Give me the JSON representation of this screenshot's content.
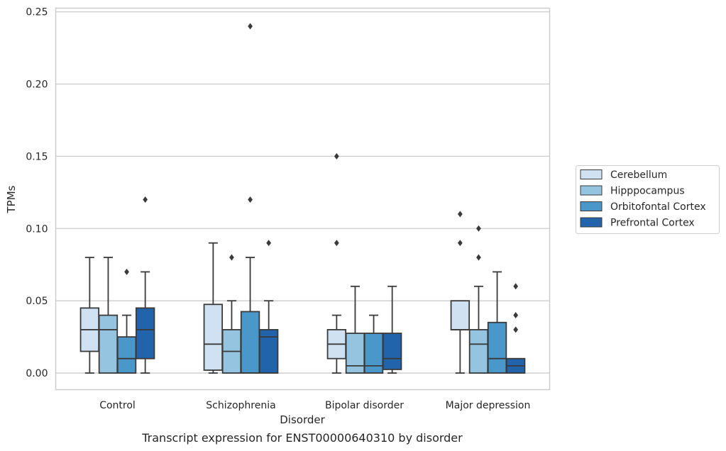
{
  "chart_data": {
    "type": "box",
    "title": "",
    "caption": "Transcript expression for ENST00000640310 by disorder",
    "xlabel": "Disorder",
    "ylabel": "TPMs",
    "ylim": [
      -0.0115,
      0.2525
    ],
    "yticks": [
      "0.00",
      "0.05",
      "0.10",
      "0.15",
      "0.20",
      "0.25"
    ],
    "ytick_values": [
      0,
      0.05,
      0.1,
      0.15,
      0.2,
      0.25
    ],
    "grid": "horizontal",
    "legend_position": "right",
    "categories": [
      "Control",
      "Schizophrenia",
      "Bipolar disorder",
      "Major depression"
    ],
    "series": [
      {
        "name": "Cerebellum",
        "color": "#d0e1f2",
        "boxes": [
          {
            "whislo": 0.0,
            "q1": 0.015,
            "med": 0.03,
            "q3": 0.045,
            "whishi": 0.08,
            "fliers": []
          },
          {
            "whislo": 0.0,
            "q1": 0.002,
            "med": 0.02,
            "q3": 0.0475,
            "whishi": 0.09,
            "fliers": []
          },
          {
            "whislo": 0.0,
            "q1": 0.01,
            "med": 0.02,
            "q3": 0.03,
            "whishi": 0.04,
            "fliers": [
              0.09,
              0.15
            ]
          },
          {
            "whislo": 0.0,
            "q1": 0.03,
            "med": 0.03,
            "q3": 0.05,
            "whishi": 0.05,
            "fliers": [
              0.09,
              0.11
            ]
          }
        ]
      },
      {
        "name": "Hipppocampus",
        "color": "#94c4df",
        "boxes": [
          {
            "whislo": 0.0,
            "q1": 0.0,
            "med": 0.03,
            "q3": 0.04,
            "whishi": 0.08,
            "fliers": []
          },
          {
            "whislo": 0.0,
            "q1": 0.0,
            "med": 0.015,
            "q3": 0.03,
            "whishi": 0.05,
            "fliers": [
              0.08
            ]
          },
          {
            "whislo": 0.0,
            "q1": 0.0,
            "med": 0.005,
            "q3": 0.0275,
            "whishi": 0.06,
            "fliers": []
          },
          {
            "whislo": 0.0,
            "q1": 0.0,
            "med": 0.02,
            "q3": 0.03,
            "whishi": 0.06,
            "fliers": [
              0.08,
              0.1
            ]
          }
        ]
      },
      {
        "name": "Orbitofontal Cortex",
        "color": "#4a98c9",
        "boxes": [
          {
            "whislo": 0.0,
            "q1": 0.0,
            "med": 0.01,
            "q3": 0.025,
            "whishi": 0.04,
            "fliers": [
              0.07
            ]
          },
          {
            "whislo": 0.0,
            "q1": 0.0,
            "med": 0.0,
            "q3": 0.0425,
            "whishi": 0.08,
            "fliers": [
              0.12,
              0.24
            ]
          },
          {
            "whislo": 0.0,
            "q1": 0.0,
            "med": 0.005,
            "q3": 0.0275,
            "whishi": 0.04,
            "fliers": []
          },
          {
            "whislo": 0.0,
            "q1": 0.0,
            "med": 0.01,
            "q3": 0.035,
            "whishi": 0.07,
            "fliers": []
          }
        ]
      },
      {
        "name": "Prefrontal Cortex",
        "color": "#2164ab",
        "boxes": [
          {
            "whislo": 0.0,
            "q1": 0.01,
            "med": 0.03,
            "q3": 0.045,
            "whishi": 0.07,
            "fliers": [
              0.12
            ]
          },
          {
            "whislo": 0.0,
            "q1": 0.0,
            "med": 0.025,
            "q3": 0.03,
            "whishi": 0.05,
            "fliers": [
              0.09
            ]
          },
          {
            "whislo": 0.0,
            "q1": 0.0025,
            "med": 0.01,
            "q3": 0.0275,
            "whishi": 0.06,
            "fliers": []
          },
          {
            "whislo": 0.0,
            "q1": 0.0,
            "med": 0.005,
            "q3": 0.01,
            "whishi": 0.01,
            "fliers": [
              0.03,
              0.04,
              0.06
            ]
          }
        ]
      }
    ]
  }
}
